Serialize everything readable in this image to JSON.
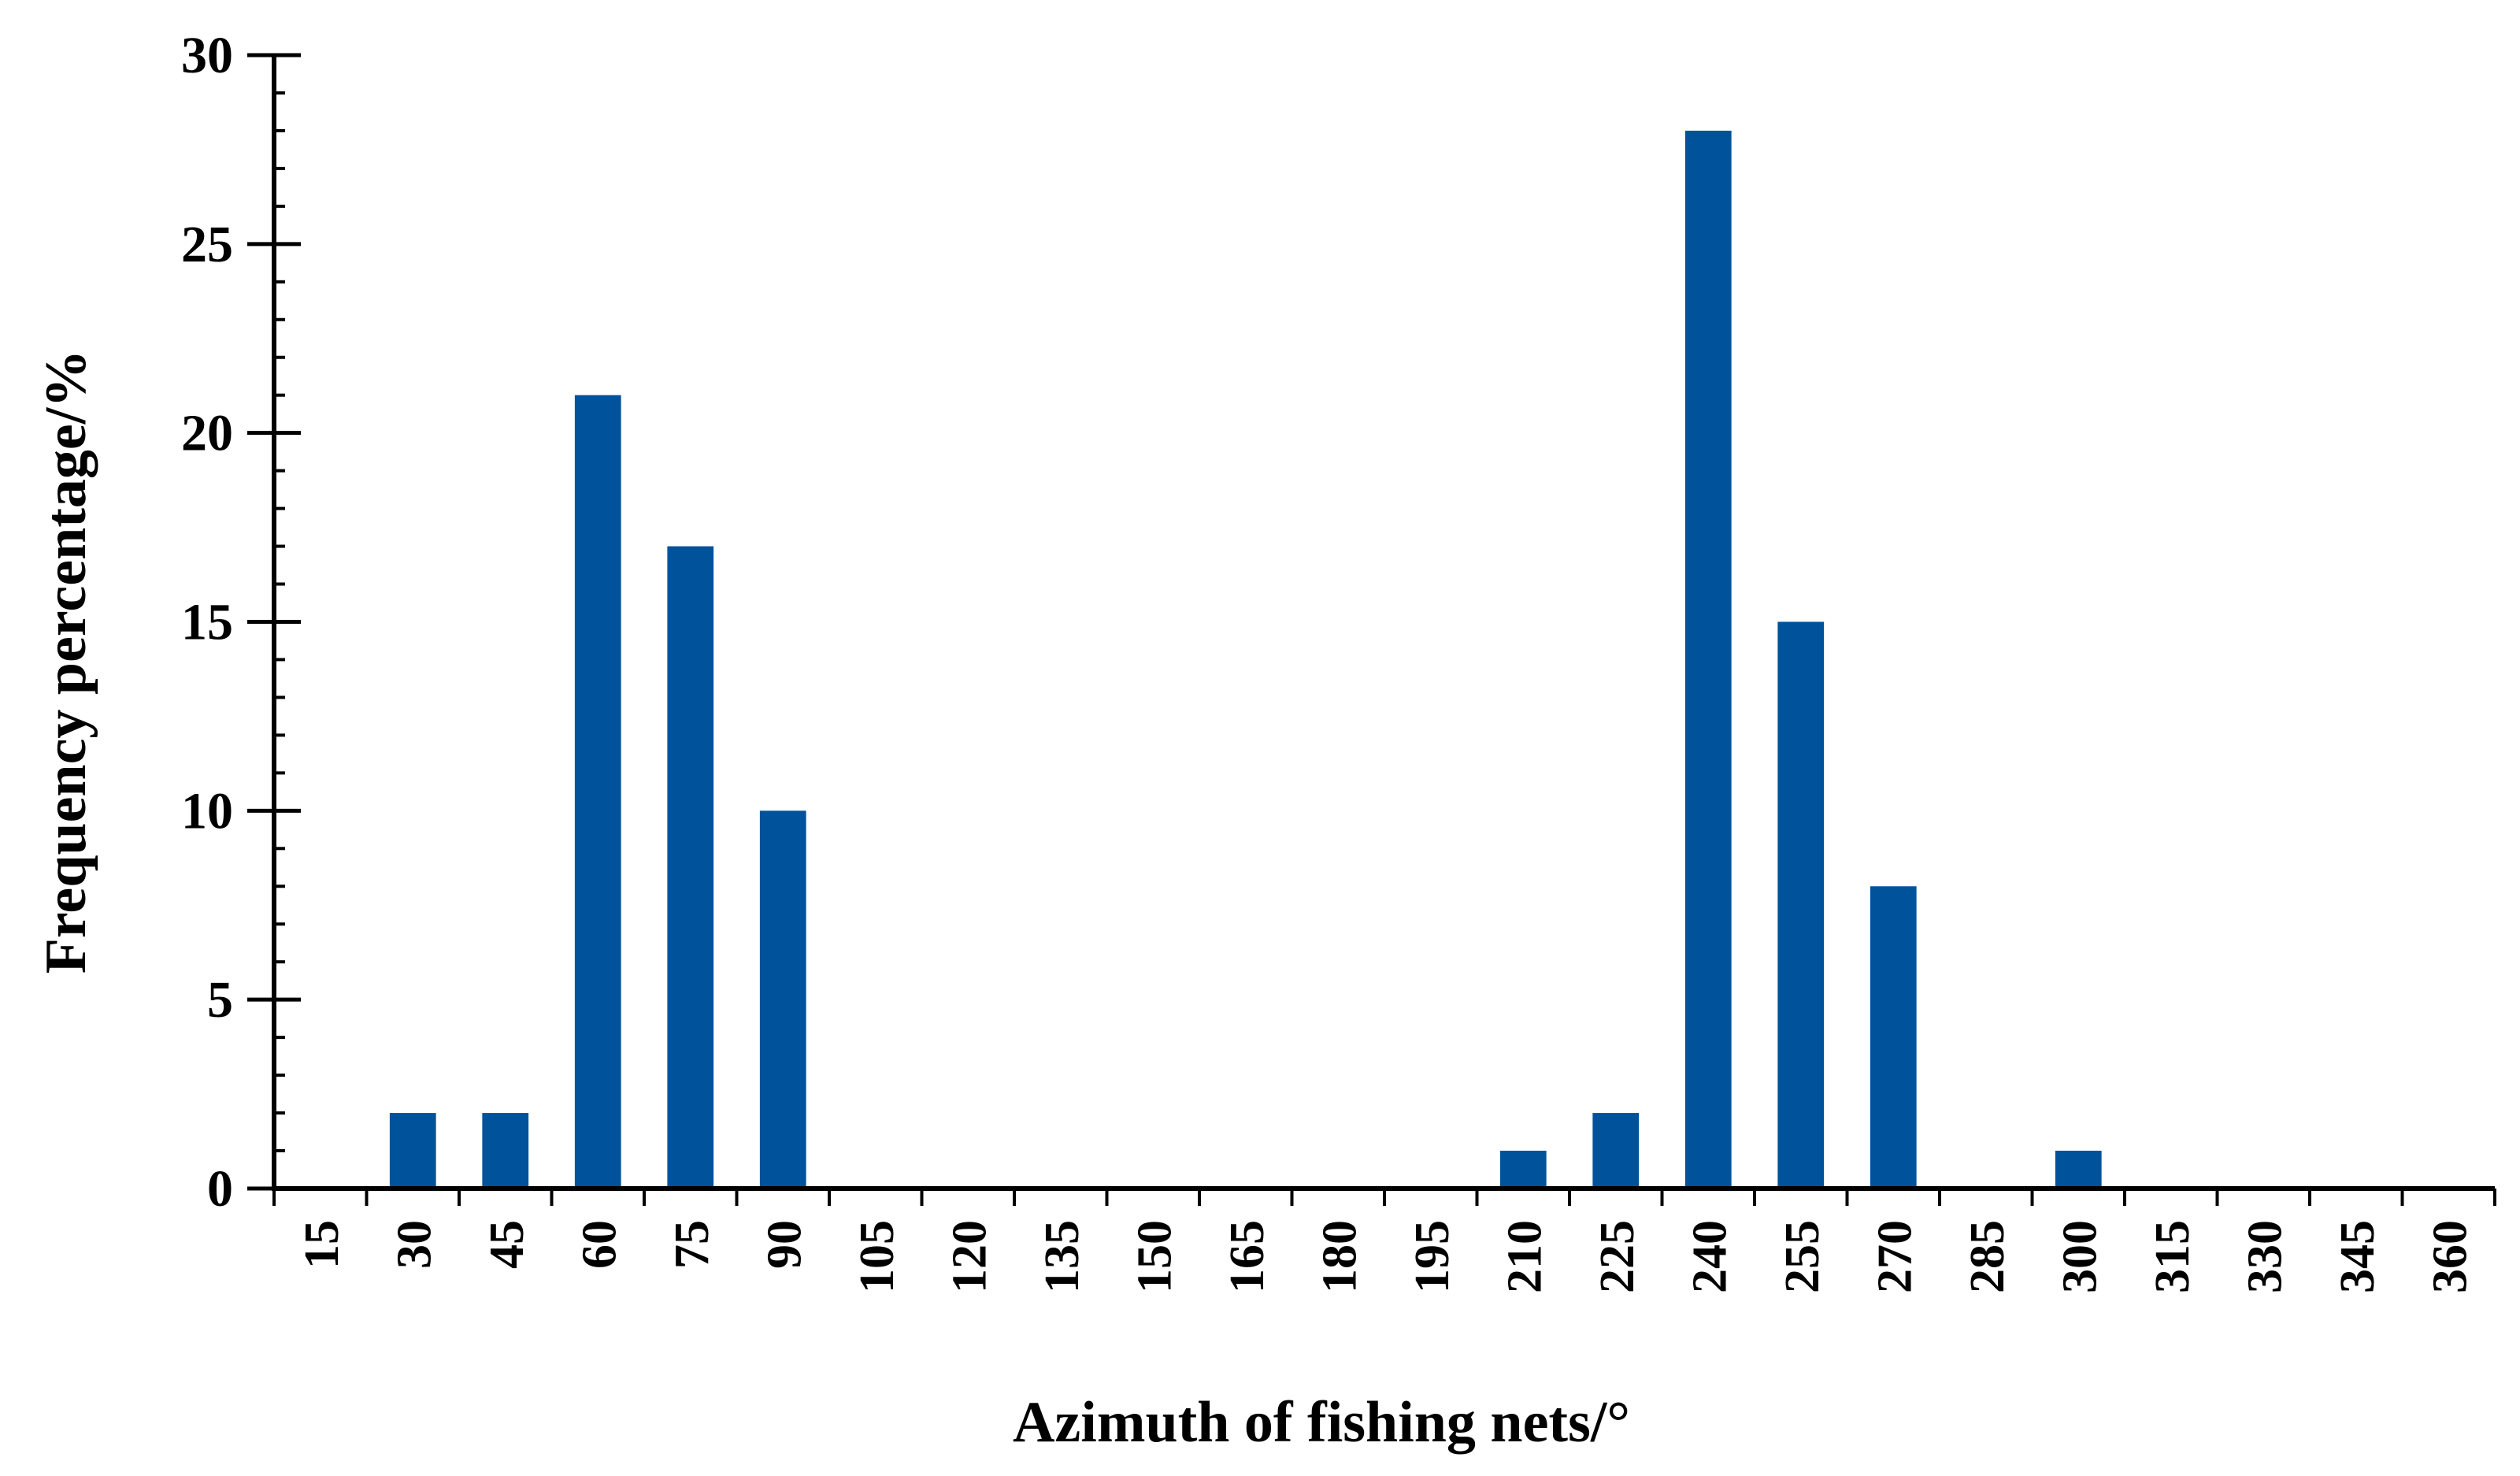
{
  "colors": {
    "bar": "#00529B",
    "axis": "#000000",
    "background": "#ffffff"
  },
  "chart_data": {
    "type": "bar",
    "xlabel": "Azimuth of fishing nets/°",
    "ylabel": "Frequency percentage/%",
    "ylim": [
      0,
      30
    ],
    "y_ticks": [
      0,
      5,
      10,
      15,
      20,
      25,
      30
    ],
    "y_minor_step": 1,
    "grid": false,
    "legend": "none",
    "categories": [
      "15",
      "30",
      "45",
      "60",
      "75",
      "90",
      "105",
      "120",
      "135",
      "150",
      "165",
      "180",
      "195",
      "210",
      "225",
      "240",
      "255",
      "270",
      "285",
      "300",
      "315",
      "330",
      "345",
      "360"
    ],
    "values": [
      0,
      2,
      2,
      21,
      17,
      10,
      0,
      0,
      0,
      0,
      0,
      0,
      0,
      1,
      2,
      28,
      15,
      8,
      0,
      1,
      0,
      0,
      0,
      0
    ]
  }
}
